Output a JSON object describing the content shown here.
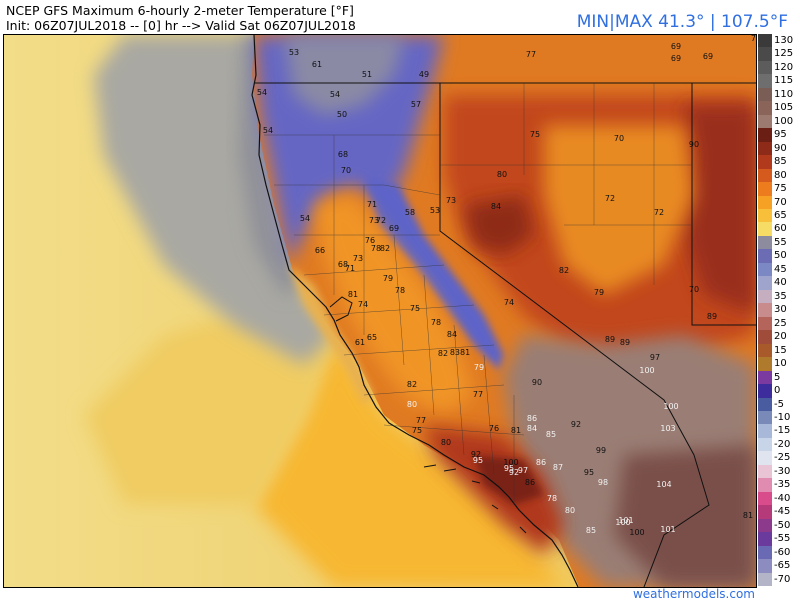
{
  "header": {
    "title": "NCEP GFS Maximum 6-hourly 2-meter Temperature [°F]",
    "init_line": "Init: 06Z07JUL2018 -- [0] hr --> Valid Sat 06Z07JUL2018",
    "minmax": "MIN|MAX 41.3° | 107.5°F"
  },
  "credit": "weathermodels.com",
  "colors": {
    "ocean_far": "#f0dc86",
    "ocean_near": "#f6c640",
    "cool_coast": "#8e90a6",
    "sierra_blue": "#5c5fc8",
    "valley_orange": "#ef8a22",
    "desert_red": "#c0401a",
    "hot_brown": "#8a5a48",
    "hottest_taupe": "#9d8076"
  },
  "legend": {
    "items": [
      {
        "label": "130",
        "color": "#3a3a3a"
      },
      {
        "label": "125",
        "color": "#4a4a4a"
      },
      {
        "label": "120",
        "color": "#5c5c5c"
      },
      {
        "label": "115",
        "color": "#6e6e6e"
      },
      {
        "label": "110",
        "color": "#7a5e56"
      },
      {
        "label": "105",
        "color": "#8a6458"
      },
      {
        "label": "100",
        "color": "#9c7a70"
      },
      {
        "label": "95",
        "color": "#6a1e14"
      },
      {
        "label": "90",
        "color": "#8e2a18"
      },
      {
        "label": "85",
        "color": "#b23a1c"
      },
      {
        "label": "80",
        "color": "#d45a1e"
      },
      {
        "label": "75",
        "color": "#ec7c1e"
      },
      {
        "label": "70",
        "color": "#f6a024"
      },
      {
        "label": "65",
        "color": "#f8c03a"
      },
      {
        "label": "60",
        "color": "#f6dc64"
      },
      {
        "label": "55",
        "color": "#8c8c9e"
      },
      {
        "label": "50",
        "color": "#6c6cb4"
      },
      {
        "label": "45",
        "color": "#7c88c4"
      },
      {
        "label": "40",
        "color": "#9ea4cc"
      },
      {
        "label": "35",
        "color": "#c4aec0"
      },
      {
        "label": "30",
        "color": "#c88c8c"
      },
      {
        "label": "25",
        "color": "#b4645a"
      },
      {
        "label": "20",
        "color": "#a04c3a"
      },
      {
        "label": "15",
        "color": "#a85a2a"
      },
      {
        "label": "10",
        "color": "#b07a2c"
      },
      {
        "label": "5",
        "color": "#7a3aa0"
      },
      {
        "label": "0",
        "color": "#3c2c9c"
      },
      {
        "label": "-5",
        "color": "#4a5ca0"
      },
      {
        "label": "-10",
        "color": "#7a8ab8"
      },
      {
        "label": "-15",
        "color": "#a8b8d8"
      },
      {
        "label": "-20",
        "color": "#c8d4e8"
      },
      {
        "label": "-25",
        "color": "#e0e4ee"
      },
      {
        "label": "-30",
        "color": "#e8c4d4"
      },
      {
        "label": "-35",
        "color": "#e08cb0"
      },
      {
        "label": "-40",
        "color": "#d84c8c"
      },
      {
        "label": "-45",
        "color": "#b43a7a"
      },
      {
        "label": "-50",
        "color": "#8c3a8c"
      },
      {
        "label": "-55",
        "color": "#6a3a9c"
      },
      {
        "label": "-60",
        "color": "#6a6ab4"
      },
      {
        "label": "-65",
        "color": "#8c8cc0"
      },
      {
        "label": "-70",
        "color": "#b4b4c8"
      }
    ]
  },
  "map_labels": [
    {
      "text": "53"
    },
    {
      "text": "61"
    },
    {
      "text": "51"
    },
    {
      "text": "49"
    },
    {
      "text": "77"
    },
    {
      "text": "69"
    },
    {
      "text": "69"
    },
    {
      "text": "69"
    },
    {
      "text": "78"
    },
    {
      "text": "54"
    },
    {
      "text": "54"
    },
    {
      "text": "57"
    },
    {
      "text": "50"
    },
    {
      "text": "54"
    },
    {
      "text": "75"
    },
    {
      "text": "70"
    },
    {
      "text": "90"
    },
    {
      "text": "68"
    },
    {
      "text": "70"
    },
    {
      "text": "80"
    },
    {
      "text": "84"
    },
    {
      "text": "73"
    },
    {
      "text": "53"
    },
    {
      "text": "58"
    },
    {
      "text": "72"
    },
    {
      "text": "72"
    },
    {
      "text": "54"
    },
    {
      "text": "71"
    },
    {
      "text": "73"
    },
    {
      "text": "72"
    },
    {
      "text": "69"
    },
    {
      "text": "76"
    },
    {
      "text": "78"
    },
    {
      "text": "82"
    },
    {
      "text": "66"
    },
    {
      "text": "73"
    },
    {
      "text": "68"
    },
    {
      "text": "79"
    },
    {
      "text": "71"
    },
    {
      "text": "81"
    },
    {
      "text": "82"
    },
    {
      "text": "79"
    },
    {
      "text": "70"
    },
    {
      "text": "74"
    },
    {
      "text": "78"
    },
    {
      "text": "74"
    },
    {
      "text": "75"
    },
    {
      "text": "78"
    },
    {
      "text": "84"
    },
    {
      "text": "89"
    },
    {
      "text": "89"
    },
    {
      "text": "89"
    },
    {
      "text": "97"
    },
    {
      "text": "65"
    },
    {
      "text": "61"
    },
    {
      "text": "82"
    },
    {
      "text": "8381"
    },
    {
      "text": "79"
    },
    {
      "text": "100"
    },
    {
      "text": "90"
    },
    {
      "text": "82"
    },
    {
      "text": "77"
    },
    {
      "text": "100"
    },
    {
      "text": "80"
    },
    {
      "text": "86"
    },
    {
      "text": "84"
    },
    {
      "text": "92"
    },
    {
      "text": "77"
    },
    {
      "text": "76"
    },
    {
      "text": "81"
    },
    {
      "text": "85"
    },
    {
      "text": "103"
    },
    {
      "text": "75"
    },
    {
      "text": "80"
    },
    {
      "text": "92"
    },
    {
      "text": "99"
    },
    {
      "text": "95"
    },
    {
      "text": "100"
    },
    {
      "text": "86"
    },
    {
      "text": "87"
    },
    {
      "text": "95"
    },
    {
      "text": "92"
    },
    {
      "text": "97"
    },
    {
      "text": "86"
    },
    {
      "text": "95"
    },
    {
      "text": "98"
    },
    {
      "text": "104"
    },
    {
      "text": "78"
    },
    {
      "text": "80"
    },
    {
      "text": "100"
    },
    {
      "text": "101"
    },
    {
      "text": "101"
    },
    {
      "text": "85"
    },
    {
      "text": "100"
    },
    {
      "text": "81"
    }
  ]
}
